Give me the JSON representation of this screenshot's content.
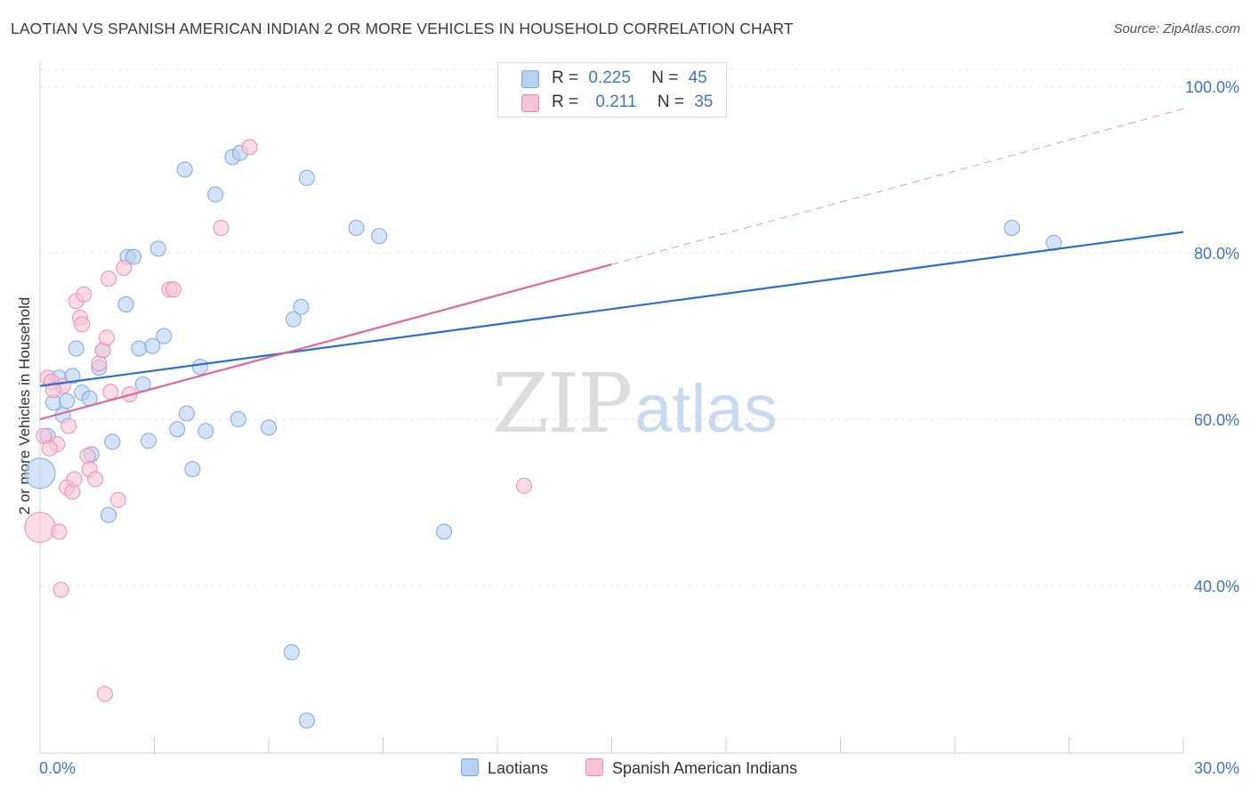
{
  "title": "LAOTIAN VS SPANISH AMERICAN INDIAN 2 OR MORE VEHICLES IN HOUSEHOLD CORRELATION CHART",
  "source": "Source: ZipAtlas.com",
  "watermark": {
    "zip": "ZIP",
    "atlas": "atlas"
  },
  "legend": {
    "rows": [
      {
        "r_label": "R =",
        "r_value": "0.225",
        "n_label": "N =",
        "n_value": "45"
      },
      {
        "r_label": "R =",
        "r_value": "0.211",
        "n_label": "N =",
        "n_value": "35"
      }
    ]
  },
  "chart_data": {
    "type": "scatter",
    "ylabel": "2 or more Vehicles in Household",
    "xlim": [
      0,
      30
    ],
    "ylim": [
      20,
      100
    ],
    "x_ticks": [
      "0.0%",
      "30.0%"
    ],
    "y_ticks": [
      {
        "value": 40,
        "label": "40.0%"
      },
      {
        "value": 60,
        "label": "60.0%"
      },
      {
        "value": 80,
        "label": "80.0%"
      },
      {
        "value": 100,
        "label": "100.0%"
      }
    ],
    "grid": true,
    "series": [
      {
        "name": "Laotians",
        "color": "#7aaae6",
        "fill": "#b7d1f2",
        "line_color": "#2a6fcf",
        "trend": {
          "x0": 0,
          "y0": 64.0,
          "x1": 30,
          "y1": 82.5
        },
        "points": [
          [
            0.0,
            53.5
          ],
          [
            0.2,
            58.0
          ],
          [
            0.35,
            62.0
          ],
          [
            0.5,
            65.0
          ],
          [
            0.6,
            60.5
          ],
          [
            0.7,
            62.2
          ],
          [
            0.85,
            65.2
          ],
          [
            0.95,
            68.5
          ],
          [
            1.1,
            63.2
          ],
          [
            1.3,
            62.5
          ],
          [
            1.35,
            55.8
          ],
          [
            1.55,
            66.2
          ],
          [
            1.65,
            68.3
          ],
          [
            1.8,
            48.5
          ],
          [
            1.9,
            57.3
          ],
          [
            2.25,
            73.8
          ],
          [
            2.3,
            79.5
          ],
          [
            2.45,
            79.5
          ],
          [
            2.6,
            68.5
          ],
          [
            2.7,
            64.2
          ],
          [
            2.85,
            57.4
          ],
          [
            2.95,
            68.8
          ],
          [
            3.1,
            80.5
          ],
          [
            3.25,
            70.0
          ],
          [
            3.6,
            58.8
          ],
          [
            3.8,
            90.0
          ],
          [
            3.85,
            60.7
          ],
          [
            4.0,
            54.0
          ],
          [
            4.2,
            66.3
          ],
          [
            4.35,
            58.6
          ],
          [
            4.6,
            87.0
          ],
          [
            5.05,
            91.5
          ],
          [
            5.2,
            60.0
          ],
          [
            5.25,
            92.0
          ],
          [
            6.0,
            59.0
          ],
          [
            6.6,
            32.0
          ],
          [
            6.65,
            72.0
          ],
          [
            6.85,
            73.5
          ],
          [
            7.0,
            89.0
          ],
          [
            7.0,
            23.8
          ],
          [
            8.3,
            83.0
          ],
          [
            8.9,
            82.0
          ],
          [
            10.6,
            46.5
          ],
          [
            25.5,
            83.0
          ],
          [
            26.6,
            81.2
          ]
        ]
      },
      {
        "name": "Spanish American Indians",
        "color": "#eb8fb0",
        "fill": "#f7c3d6",
        "line_color": "#e0689a",
        "trend": {
          "x0": 0,
          "y0": 60.0,
          "x1": 15.0,
          "y1": 78.6
        },
        "trend_ext": {
          "x0": 15.0,
          "y0": 78.6,
          "x1": 30,
          "y1": 97.3
        },
        "points": [
          [
            0.0,
            47.0
          ],
          [
            0.1,
            58.0
          ],
          [
            0.2,
            65.0
          ],
          [
            0.3,
            64.5
          ],
          [
            0.45,
            57.0
          ],
          [
            0.5,
            46.5
          ],
          [
            0.55,
            39.5
          ],
          [
            0.6,
            64.0
          ],
          [
            0.7,
            51.8
          ],
          [
            0.75,
            59.2
          ],
          [
            0.85,
            51.3
          ],
          [
            0.9,
            52.8
          ],
          [
            0.95,
            74.2
          ],
          [
            1.05,
            72.2
          ],
          [
            1.1,
            71.4
          ],
          [
            1.15,
            75.0
          ],
          [
            1.25,
            55.6
          ],
          [
            1.3,
            54.0
          ],
          [
            1.45,
            52.8
          ],
          [
            1.55,
            66.7
          ],
          [
            1.65,
            68.3
          ],
          [
            1.7,
            27.0
          ],
          [
            1.75,
            69.8
          ],
          [
            1.8,
            76.9
          ],
          [
            1.85,
            63.3
          ],
          [
            2.05,
            50.3
          ],
          [
            2.2,
            78.2
          ],
          [
            2.35,
            63.0
          ],
          [
            3.4,
            75.6
          ],
          [
            3.5,
            75.6
          ],
          [
            4.75,
            83.0
          ],
          [
            5.5,
            92.7
          ],
          [
            12.7,
            52.0
          ],
          [
            0.35,
            63.5
          ],
          [
            0.25,
            56.5
          ]
        ]
      }
    ]
  }
}
